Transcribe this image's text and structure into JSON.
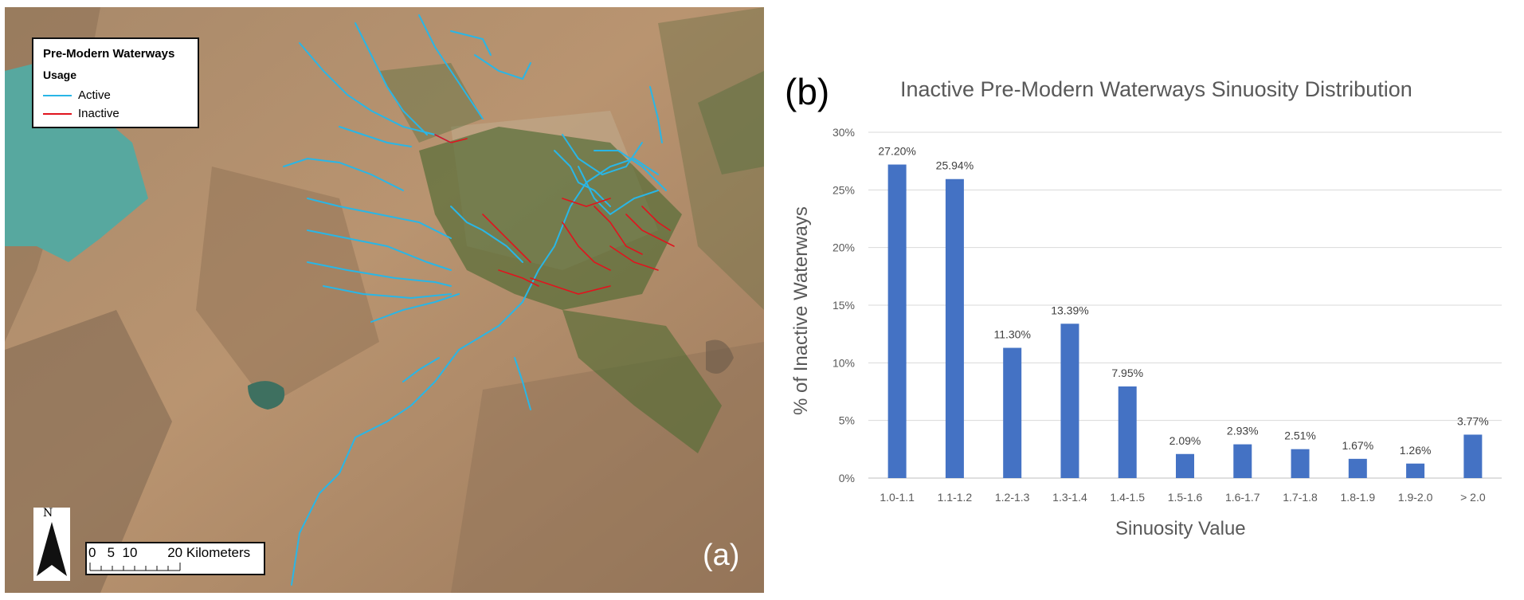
{
  "map": {
    "legend": {
      "title": "Pre-Modern Waterways",
      "subtitle": "Usage",
      "items": [
        {
          "label": "Active",
          "color": "#29b6e6"
        },
        {
          "label": "Inactive",
          "color": "#e0141e"
        }
      ]
    },
    "north_label": "N",
    "scale_label": "0   5  10        20 Kilometers",
    "panel_label": "(a)"
  },
  "chart": {
    "panel_label": "(b)",
    "title": "Inactive Pre-Modern Waterways Sinuosity Distribution",
    "xlabel": "Sinuosity Value",
    "ylabel": "% of Inactive Waterways",
    "bar_color": "#4472c4"
  },
  "chart_data": {
    "type": "bar",
    "title": "Inactive Pre-Modern Waterways Sinuosity Distribution",
    "xlabel": "Sinuosity Value",
    "ylabel": "% of Inactive Waterways",
    "categories": [
      "1.0-1.1",
      "1.1-1.2",
      "1.2-1.3",
      "1.3-1.4",
      "1.4-1.5",
      "1.5-1.6",
      "1.6-1.7",
      "1.7-1.8",
      "1.8-1.9",
      "1.9-2.0",
      "> 2.0"
    ],
    "values": [
      27.2,
      25.94,
      11.3,
      13.39,
      7.95,
      2.09,
      2.93,
      2.51,
      1.67,
      1.26,
      3.77
    ],
    "value_labels": [
      "27.20%",
      "25.94%",
      "11.30%",
      "13.39%",
      "7.95%",
      "2.09%",
      "2.93%",
      "2.51%",
      "1.67%",
      "1.26%",
      "3.77%"
    ],
    "ylim": [
      0,
      30
    ],
    "yticks": [
      0,
      5,
      10,
      15,
      20,
      25,
      30
    ],
    "ytick_labels": [
      "0%",
      "5%",
      "10%",
      "15%",
      "20%",
      "25%",
      "30%"
    ],
    "grid": true,
    "legend": "none"
  }
}
